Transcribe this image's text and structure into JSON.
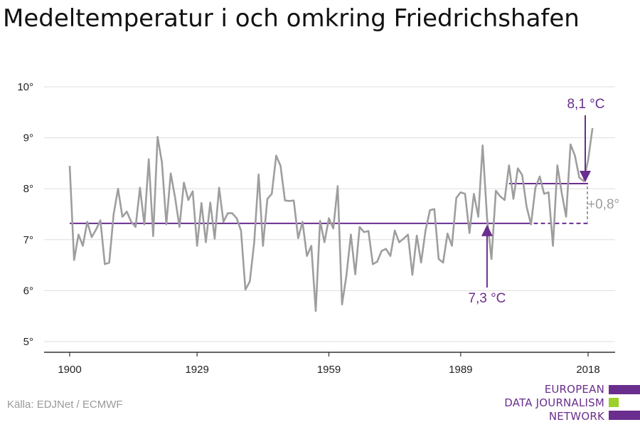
{
  "title": "Medeltemperatur i och omkring Friedrichshafen",
  "source": "Källa: EDJNet / ECMWF",
  "logo": {
    "lines": [
      "EUROPEAN",
      "DATA JOURNALISM",
      "NETWORK"
    ]
  },
  "colors": {
    "series": "#9e9e9e",
    "accent": "#6a2e8e",
    "logo_purple": "#6a2e8e",
    "logo_green": "#9bd12a",
    "grid": "#dddddd"
  },
  "annotations": {
    "recent": "8,1 °C",
    "baseline": "7,3 °C",
    "diff": "+0,8°"
  },
  "chart_data": {
    "type": "line",
    "title": "Medeltemperatur i och omkring Friedrichshafen",
    "xlabel": "",
    "ylabel": "",
    "ylim": [
      4.8,
      10.3
    ],
    "xlim": [
      1896,
      2024
    ],
    "y_ticks": [
      5,
      6,
      7,
      8,
      9,
      10
    ],
    "y_tick_labels": [
      "5°",
      "6°",
      "7°",
      "8°",
      "9°",
      "10°"
    ],
    "x_ticks": [
      1900,
      1929,
      1959,
      1989,
      2018
    ],
    "x_tick_labels": [
      "1900",
      "1929",
      "1959",
      "1989",
      "2018"
    ],
    "grid": true,
    "x": [
      1900,
      1901,
      1902,
      1903,
      1904,
      1905,
      1906,
      1907,
      1908,
      1909,
      1910,
      1911,
      1912,
      1913,
      1914,
      1915,
      1916,
      1917,
      1918,
      1919,
      1920,
      1921,
      1922,
      1923,
      1924,
      1925,
      1926,
      1927,
      1928,
      1929,
      1930,
      1931,
      1932,
      1933,
      1934,
      1935,
      1936,
      1937,
      1938,
      1939,
      1940,
      1941,
      1942,
      1943,
      1944,
      1945,
      1946,
      1947,
      1948,
      1949,
      1950,
      1951,
      1952,
      1953,
      1954,
      1955,
      1956,
      1957,
      1958,
      1959,
      1960,
      1961,
      1962,
      1963,
      1964,
      1965,
      1966,
      1967,
      1968,
      1969,
      1970,
      1971,
      1972,
      1973,
      1974,
      1975,
      1976,
      1977,
      1978,
      1979,
      1980,
      1981,
      1982,
      1983,
      1984,
      1985,
      1986,
      1987,
      1988,
      1989,
      1990,
      1991,
      1992,
      1993,
      1994,
      1995,
      1996,
      1997,
      1998,
      1999,
      2000,
      2001,
      2002,
      2003,
      2004,
      2005,
      2006,
      2007,
      2008,
      2009,
      2010,
      2011,
      2012,
      2013,
      2014,
      2015,
      2016,
      2017,
      2018,
      2019
    ],
    "series": [
      {
        "values": [
          8.45,
          6.6,
          7.1,
          6.88,
          7.35,
          7.05,
          7.2,
          7.38,
          6.52,
          6.55,
          7.5,
          8.0,
          7.45,
          7.55,
          7.35,
          7.25,
          8.02,
          7.3,
          8.58,
          7.07,
          9.02,
          8.52,
          7.3,
          8.3,
          7.82,
          7.25,
          8.12,
          7.78,
          7.95,
          6.88,
          7.72,
          6.95,
          7.73,
          7.02,
          8.02,
          7.35,
          7.52,
          7.52,
          7.42,
          7.18,
          6.02,
          6.18,
          6.95,
          8.28,
          6.88,
          7.8,
          7.9,
          8.65,
          8.45,
          7.77,
          7.76,
          7.77,
          7.03,
          7.35,
          6.68,
          6.88,
          5.6,
          7.37,
          6.95,
          7.42,
          7.22,
          8.05,
          5.73,
          6.3,
          7.1,
          6.32,
          7.25,
          7.15,
          7.17,
          6.52,
          6.57,
          6.78,
          6.82,
          6.68,
          7.18,
          6.95,
          7.02,
          7.1,
          6.31,
          7.08,
          6.55,
          7.18,
          7.58,
          7.6,
          6.62,
          6.55,
          7.12,
          6.88,
          7.82,
          7.93,
          7.9,
          7.13,
          7.9,
          7.45,
          8.85,
          7.43,
          6.62,
          7.96,
          7.85,
          7.78,
          8.46,
          7.8,
          8.4,
          8.27,
          7.65,
          7.3,
          8.02,
          8.24,
          7.9,
          7.93,
          6.88,
          8.46,
          7.92,
          7.45,
          8.87,
          8.65,
          8.22,
          8.15,
          8.56,
          9.19
        ]
      }
    ],
    "reference_lines": [
      {
        "label": "7,3 °C",
        "y": 7.32,
        "x_start": 1900,
        "x_end": 2018
      },
      {
        "label": "8,1 °C",
        "y": 8.1,
        "x_start": 2000,
        "x_end": 2018
      }
    ]
  }
}
